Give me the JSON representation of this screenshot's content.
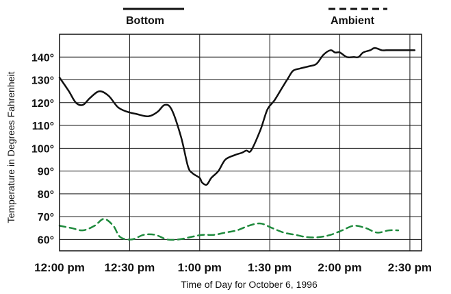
{
  "chart_data": {
    "type": "line",
    "title": "",
    "xlabel": "Time of Day for October 6, 1996",
    "ylabel": "Temperature in Degrees Fahrenheit",
    "x_tick_labels": [
      "12:00 pm",
      "12:30 pm",
      "1:00 pm",
      "1:30 pm",
      "2:00 pm",
      "2:30 pm"
    ],
    "y_tick_labels": [
      "60°",
      "70°",
      "80°",
      "90°",
      "100°",
      "110°",
      "120°",
      "130°",
      "140°"
    ],
    "y_tick_values": [
      60,
      70,
      80,
      90,
      100,
      110,
      120,
      130,
      140
    ],
    "xlim": [
      0,
      155
    ],
    "ylim": [
      55,
      150
    ],
    "grid": true,
    "legend_position": "top",
    "series": [
      {
        "name": "Bottom",
        "style": "solid",
        "color": "#111111",
        "x": [
          0,
          4,
          7,
          10,
          13,
          17,
          21,
          25,
          29,
          33,
          38,
          42,
          45,
          48,
          52,
          55,
          57,
          60,
          61,
          63,
          65,
          68,
          71,
          75,
          78,
          80,
          82,
          86,
          89,
          92,
          95,
          98,
          100,
          103,
          107,
          110,
          113,
          116,
          118,
          120,
          123,
          126,
          128,
          130,
          133,
          135,
          138,
          140,
          142,
          145,
          148,
          150,
          152
        ],
        "y": [
          131,
          125,
          120,
          119,
          122,
          125,
          123,
          118,
          116,
          115,
          114,
          116,
          119,
          117,
          105,
          92,
          89,
          87,
          85,
          84,
          87,
          90,
          95,
          97,
          98,
          99,
          99,
          108,
          117,
          121,
          126,
          131,
          134,
          135,
          136,
          137,
          141,
          143,
          142,
          142,
          140,
          140,
          140,
          142,
          143,
          144,
          143,
          143,
          143,
          143,
          143,
          143,
          143
        ]
      },
      {
        "name": "Ambient",
        "style": "dashed",
        "color": "#1e8a3c",
        "x": [
          0,
          5,
          10,
          15,
          19,
          23,
          26,
          31,
          36,
          41,
          46,
          51,
          56,
          61,
          66,
          71,
          76,
          81,
          86,
          91,
          96,
          101,
          106,
          111,
          116,
          121,
          126,
          131,
          136,
          141,
          145
        ],
        "y": [
          66,
          65,
          64,
          66,
          69,
          66,
          61,
          60,
          62,
          62,
          60,
          60,
          61,
          62,
          62,
          63,
          64,
          66,
          67,
          65,
          63,
          62,
          61,
          61,
          62,
          64,
          66,
          65,
          63,
          64,
          64
        ]
      }
    ]
  }
}
